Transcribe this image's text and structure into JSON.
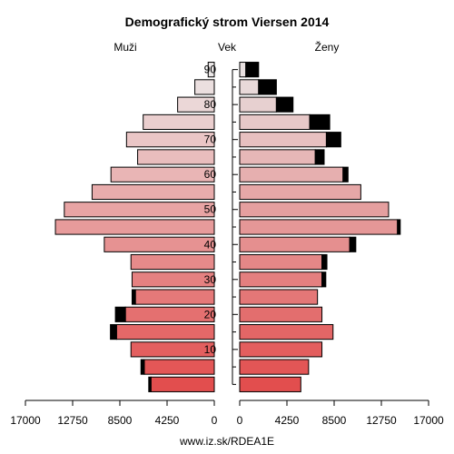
{
  "chart_data": {
    "type": "bar",
    "title": "Demografický strom Viersen 2014",
    "left_label": "Muži",
    "center_label": "Vek",
    "right_label": "Ženy",
    "footer": "www.iz.sk/RDEA1E",
    "age_ticks": [
      "10",
      "20",
      "30",
      "40",
      "50",
      "60",
      "70",
      "80",
      "90"
    ],
    "x_ticks_left": [
      "17000",
      "12750",
      "8500",
      "4250",
      "0"
    ],
    "x_ticks_right": [
      "0",
      "4250",
      "8500",
      "12750",
      "17000"
    ],
    "xlim": [
      0,
      17000
    ],
    "categories": [
      "0-4",
      "5-9",
      "10-14",
      "15-19",
      "20-24",
      "25-29",
      "30-34",
      "35-39",
      "40-44",
      "45-49",
      "50-54",
      "55-59",
      "60-64",
      "65-69",
      "70-74",
      "75-79",
      "80-84",
      "85-89",
      "90+"
    ],
    "series": [
      {
        "side": "male",
        "values": [
          5700,
          6300,
          7500,
          8800,
          8000,
          7100,
          7400,
          7500,
          9900,
          14300,
          13500,
          11000,
          9300,
          6900,
          7900,
          6400,
          3300,
          1750,
          550
        ],
        "excess": [
          200,
          300,
          0,
          550,
          900,
          300,
          0,
          0,
          0,
          0,
          0,
          0,
          0,
          0,
          0,
          0,
          0,
          0,
          0
        ]
      },
      {
        "side": "female",
        "values": [
          5500,
          6200,
          7400,
          8400,
          7400,
          7000,
          7400,
          7400,
          9900,
          14200,
          13400,
          10900,
          9300,
          6800,
          7800,
          6300,
          3300,
          1700,
          550
        ],
        "excess": [
          0,
          0,
          0,
          0,
          0,
          0,
          350,
          450,
          550,
          250,
          0,
          0,
          450,
          800,
          1300,
          1800,
          1500,
          1600,
          1150
        ]
      }
    ]
  }
}
